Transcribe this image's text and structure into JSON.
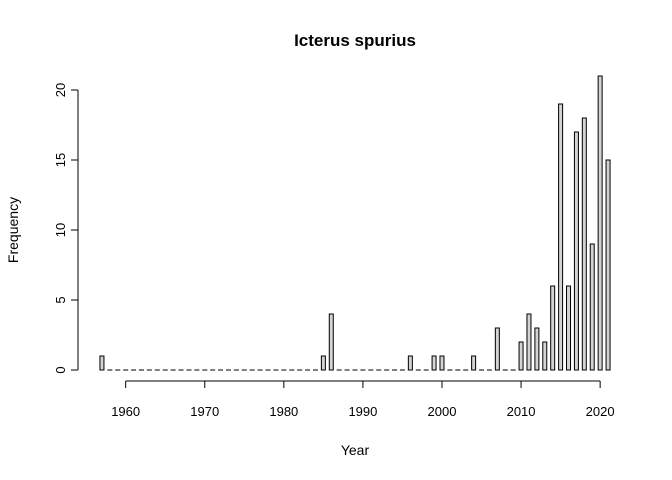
{
  "chart_data": {
    "type": "bar",
    "title": "Icterus spurius",
    "xlabel": "Year",
    "ylabel": "Frequency",
    "xlim": [
      1957,
      2021
    ],
    "ylim": [
      0,
      21
    ],
    "x_ticks": [
      1960,
      1970,
      1980,
      1990,
      2000,
      2010,
      2020
    ],
    "y_ticks": [
      0,
      5,
      10,
      15,
      20
    ],
    "bar_fill": "#d3d3d3",
    "bar_stroke": "#000000",
    "grid": false,
    "years": [
      1957,
      1958,
      1959,
      1960,
      1961,
      1962,
      1963,
      1964,
      1965,
      1966,
      1967,
      1968,
      1969,
      1970,
      1971,
      1972,
      1973,
      1974,
      1975,
      1976,
      1977,
      1978,
      1979,
      1980,
      1981,
      1982,
      1983,
      1984,
      1985,
      1986,
      1987,
      1988,
      1989,
      1990,
      1991,
      1992,
      1993,
      1994,
      1995,
      1996,
      1997,
      1998,
      1999,
      2000,
      2001,
      2002,
      2003,
      2004,
      2005,
      2006,
      2007,
      2008,
      2009,
      2010,
      2011,
      2012,
      2013,
      2014,
      2015,
      2016,
      2017,
      2018,
      2019,
      2020,
      2021
    ],
    "values": [
      1,
      0,
      0,
      0,
      0,
      0,
      0,
      0,
      0,
      0,
      0,
      0,
      0,
      0,
      0,
      0,
      0,
      0,
      0,
      0,
      0,
      0,
      0,
      0,
      0,
      0,
      0,
      0,
      1,
      4,
      0,
      0,
      0,
      0,
      0,
      0,
      0,
      0,
      0,
      1,
      0,
      0,
      1,
      1,
      0,
      0,
      0,
      1,
      0,
      0,
      3,
      0,
      0,
      2,
      4,
      3,
      2,
      6,
      19,
      6,
      17,
      18,
      9,
      21,
      15
    ]
  }
}
